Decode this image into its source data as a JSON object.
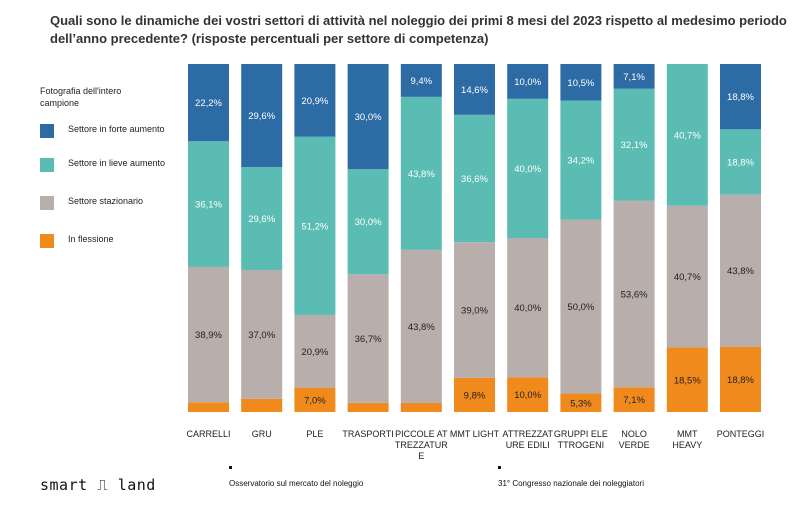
{
  "header": {
    "title": "Quali sono le dinamiche dei vostri settori di attività nel noleggio dei primi 8 mesi del 2023  rispetto al medesimo periodo",
    "subtitle": "dell’anno precedente? (risposte percentuali per settore di competenza)"
  },
  "legend": {
    "title": "Fotografia dell'intero campione",
    "items": [
      {
        "label": "Settore in forte aumento",
        "color": "#2d6ba5"
      },
      {
        "label": "Settore in lieve aumento",
        "color": "#5bbcb4"
      },
      {
        "label": "Settore stazionario",
        "color": "#b8aeab"
      },
      {
        "label": "In flessione",
        "color": "#f08a1c"
      }
    ]
  },
  "chart_data": {
    "type": "bar",
    "stacked": true,
    "normalized": true,
    "categories": [
      "CARRELLI",
      "GRU",
      "PLE",
      "TRASPORTI",
      "PICCOLE AT TREZZATUR E",
      "MMT LIGHT",
      "ATTREZZAT URE EDILI",
      "GRUPPI ELE TTROGENI",
      "NOLO VERDE",
      "MMT HEAVY",
      "PONTEGGI"
    ],
    "category_lines": [
      [
        "CARRELLI"
      ],
      [
        "GRU"
      ],
      [
        "PLE"
      ],
      [
        "TRASPORTI"
      ],
      [
        "PICCOLE AT",
        "TREZZATUR",
        "E"
      ],
      [
        "MMT LIGHT"
      ],
      [
        "ATTREZZAT",
        "URE EDILI"
      ],
      [
        "GRUPPI ELE",
        "TTROGENI"
      ],
      [
        "NOLO",
        "VERDE"
      ],
      [
        "MMT",
        "HEAVY"
      ],
      [
        "PONTEGGI"
      ]
    ],
    "series": [
      {
        "name": "In flessione",
        "color": "#f08a1c",
        "values": [
          2.8,
          3.8,
          7.0,
          2.6,
          2.6,
          9.8,
          10.0,
          5.3,
          7.1,
          18.5,
          18.8
        ],
        "labels": [
          "",
          "",
          "7,0%",
          "",
          "",
          "9,8%",
          "10,0%",
          "5,3%",
          "7,1%",
          "18,5%",
          "18,8%"
        ]
      },
      {
        "name": "Settore stazionario",
        "color": "#b8aeab",
        "values": [
          38.9,
          37.0,
          20.9,
          36.7,
          43.8,
          39.0,
          40.0,
          50.0,
          53.6,
          40.7,
          43.8
        ],
        "labels": [
          "38,9%",
          "37,0%",
          "20,9%",
          "36,7%",
          "43,8%",
          "39,0%",
          "40,0%",
          "50,0%",
          "53,6%",
          "40,7%",
          "43,8%"
        ]
      },
      {
        "name": "Settore in lieve aumento",
        "color": "#5bbcb4",
        "values": [
          36.1,
          29.6,
          51.2,
          30.0,
          43.8,
          36.6,
          40.0,
          34.2,
          32.1,
          40.7,
          18.8
        ],
        "labels": [
          "36,1%",
          "29,6%",
          "51,2%",
          "30,0%",
          "43,8%",
          "36,6%",
          "40,0%",
          "34,2%",
          "32,1%",
          "40,7%",
          "18,8%"
        ]
      },
      {
        "name": "Settore in forte aumento",
        "color": "#2d6ba5",
        "values": [
          22.2,
          29.6,
          20.9,
          30.0,
          9.4,
          14.6,
          10.0,
          10.5,
          7.1,
          0.0,
          18.8
        ],
        "labels": [
          "22,2%",
          "29,6%",
          "20,9%",
          "30,0%",
          "9,4%",
          "14,6%",
          "10,0%",
          "10,5%",
          "7,1%",
          "",
          "18,8%"
        ]
      }
    ],
    "ylim": [
      0,
      100
    ]
  },
  "footer": {
    "logo": "smart ⎍ land",
    "note_left": "Osservatorio sul mercato del noleggio",
    "note_right": "31° Congresso nazionale dei noleggiatori"
  }
}
